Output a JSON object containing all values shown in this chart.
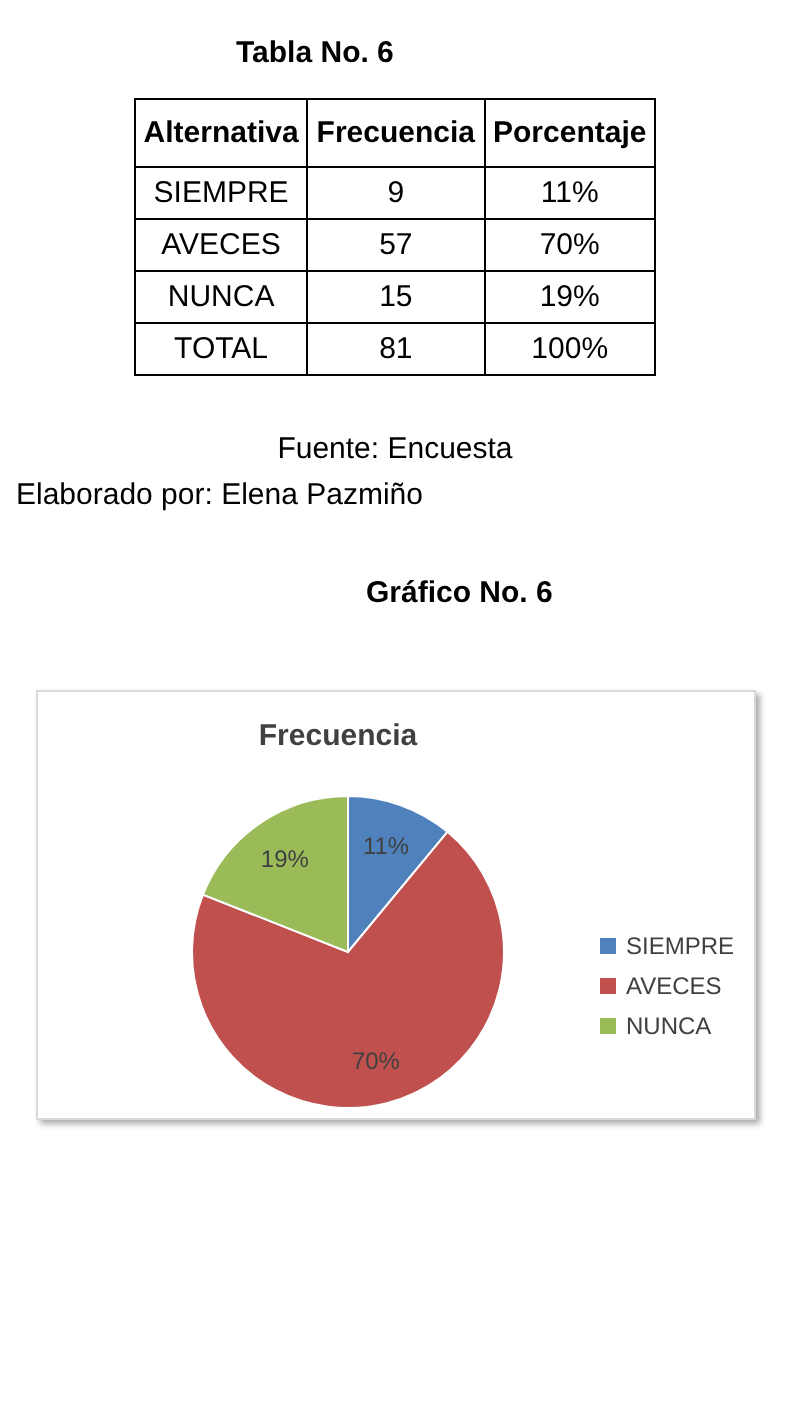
{
  "chart_data": {
    "type": "pie",
    "title": "Frecuencia",
    "categories": [
      "SIEMPRE",
      "AVECES",
      "NUNCA"
    ],
    "values": [
      11,
      70,
      19
    ],
    "value_labels": [
      "11%",
      "70%",
      "19%"
    ],
    "colors": [
      "#4f81bd",
      "#c0504d",
      "#9bbb59"
    ],
    "legend": "right",
    "annotations": [
      "Tabla  No. 6",
      "Alternativa",
      "Frecuencia",
      "Porcentaje",
      "TOTAL",
      "81",
      "100%",
      "9",
      "57",
      "15",
      "Fuente: Encuesta",
      "Elaborado por: Elena Pazmiño",
      "Gráfico No. 6"
    ]
  }
}
